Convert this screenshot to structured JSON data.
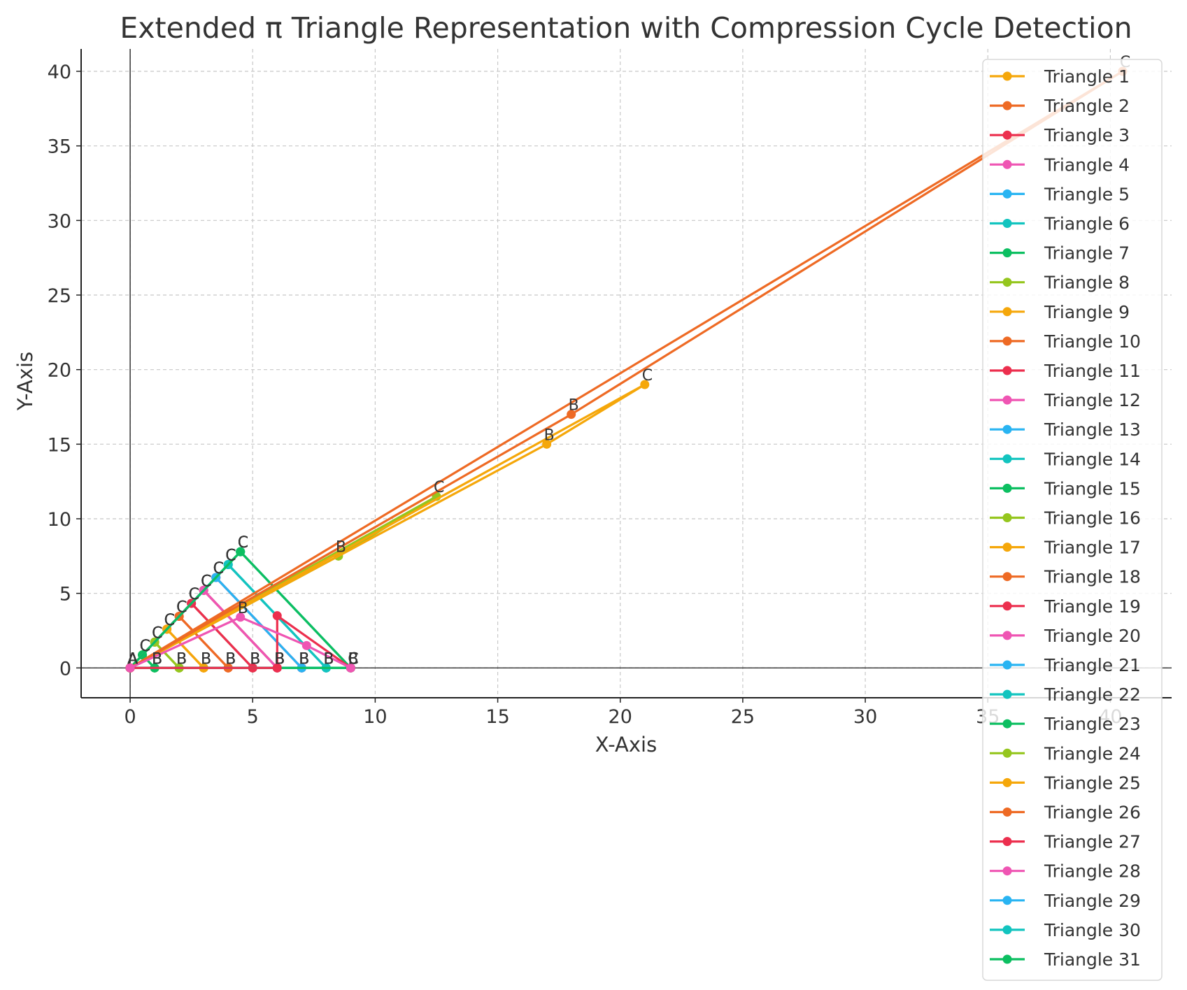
{
  "chart_data": {
    "type": "line",
    "title": "Extended π Triangle Representation with Compression Cycle Detection",
    "xlabel": "X-Axis",
    "ylabel": "Y-Axis",
    "xlim": [
      -2.0,
      42.5
    ],
    "ylim": [
      -2.0,
      41.5
    ],
    "xticks": [
      0,
      5,
      10,
      15,
      20,
      25,
      30,
      35,
      40
    ],
    "yticks": [
      0,
      5,
      10,
      15,
      20,
      25,
      30,
      35,
      40
    ],
    "grid": true,
    "legend_position": "right",
    "vertex_labels": [
      "A",
      "B",
      "C"
    ],
    "palette": [
      "#F5A70A",
      "#EE6A24",
      "#EC2F4E",
      "#EF55B3",
      "#29B4F2",
      "#12C4BF",
      "#0CBF61",
      "#95C61E"
    ],
    "series": [
      {
        "name": "Triangle 1",
        "vertices": [
          [
            0,
            0
          ],
          [
            1,
            0
          ],
          [
            0.5,
            0.87
          ]
        ]
      },
      {
        "name": "Triangle 2",
        "vertices": [
          [
            0,
            0
          ],
          [
            2,
            0
          ],
          [
            1,
            1.73
          ]
        ]
      },
      {
        "name": "Triangle 3",
        "vertices": [
          [
            0,
            0
          ],
          [
            3,
            0
          ],
          [
            1.5,
            2.6
          ]
        ]
      },
      {
        "name": "Triangle 4",
        "vertices": [
          [
            0,
            0
          ],
          [
            4,
            0
          ],
          [
            2,
            3.46
          ]
        ]
      },
      {
        "name": "Triangle 5",
        "vertices": [
          [
            0,
            0
          ],
          [
            5,
            0
          ],
          [
            2.5,
            4.33
          ]
        ]
      },
      {
        "name": "Triangle 6",
        "vertices": [
          [
            0,
            0
          ],
          [
            6,
            0
          ],
          [
            3,
            5.2
          ]
        ]
      },
      {
        "name": "Triangle 7",
        "vertices": [
          [
            0,
            0
          ],
          [
            7,
            0
          ],
          [
            3.5,
            6.06
          ]
        ]
      },
      {
        "name": "Triangle 8",
        "vertices": [
          [
            0,
            0
          ],
          [
            8,
            0
          ],
          [
            4,
            6.93
          ]
        ]
      },
      {
        "name": "Triangle 9",
        "vertices": [
          [
            0,
            0
          ],
          [
            9,
            0
          ],
          [
            4.5,
            7.79
          ]
        ]
      },
      {
        "name": "Triangle 10",
        "vertices": [
          [
            0,
            0
          ],
          [
            5,
            0
          ],
          [
            2.5,
            4.33
          ]
        ]
      },
      {
        "name": "Triangle 11",
        "vertices": [
          [
            0,
            0
          ],
          [
            6,
            0
          ],
          [
            3,
            5.2
          ]
        ]
      },
      {
        "name": "Triangle 12",
        "vertices": [
          [
            0,
            0
          ],
          [
            7,
            0
          ],
          [
            3.5,
            6.06
          ]
        ]
      },
      {
        "name": "Triangle 13",
        "vertices": [
          [
            0,
            0
          ],
          [
            8,
            0
          ],
          [
            4,
            6.93
          ]
        ]
      },
      {
        "name": "Triangle 14",
        "vertices": [
          [
            0,
            0
          ],
          [
            9,
            0
          ],
          [
            4.5,
            7.79
          ]
        ]
      },
      {
        "name": "Triangle 15",
        "vertices": [
          [
            0,
            0
          ],
          [
            1,
            0
          ],
          [
            0.5,
            0.87
          ]
        ]
      },
      {
        "name": "Triangle 16",
        "vertices": [
          [
            0,
            0
          ],
          [
            2,
            0
          ],
          [
            1,
            1.73
          ]
        ]
      },
      {
        "name": "Triangle 17",
        "vertices": [
          [
            0,
            0
          ],
          [
            3,
            0
          ],
          [
            1.5,
            2.6
          ]
        ]
      },
      {
        "name": "Triangle 18",
        "vertices": [
          [
            0,
            0
          ],
          [
            4,
            0
          ],
          [
            2,
            3.46
          ]
        ]
      },
      {
        "name": "Triangle 19",
        "vertices": [
          [
            0,
            0
          ],
          [
            6,
            0
          ],
          [
            3,
            5.2
          ]
        ]
      },
      {
        "name": "Triangle 20",
        "vertices": [
          [
            0,
            0
          ],
          [
            7,
            0
          ],
          [
            3.5,
            6.06
          ]
        ]
      },
      {
        "name": "Triangle 21",
        "vertices": [
          [
            0,
            0
          ],
          [
            8,
            0
          ],
          [
            4,
            6.93
          ]
        ]
      },
      {
        "name": "Triangle 22",
        "vertices": [
          [
            0,
            0
          ],
          [
            9,
            0
          ],
          [
            4.5,
            7.79
          ]
        ]
      },
      {
        "name": "Triangle 23",
        "vertices": [
          [
            0,
            0
          ],
          [
            1,
            0
          ],
          [
            0.5,
            0.87
          ]
        ]
      },
      {
        "name": "Triangle 24",
        "vertices": [
          [
            0,
            0
          ],
          [
            2,
            0
          ],
          [
            1,
            1.73
          ]
        ]
      },
      {
        "name": "Triangle 25",
        "vertices": [
          [
            0,
            0
          ],
          [
            3,
            0
          ],
          [
            1.5,
            2.6
          ]
        ]
      },
      {
        "name": "Triangle 26",
        "vertices": [
          [
            0,
            0
          ],
          [
            4,
            0
          ],
          [
            2,
            3.46
          ]
        ]
      },
      {
        "name": "Triangle 27",
        "vertices": [
          [
            0,
            0
          ],
          [
            5,
            0
          ],
          [
            2.5,
            4.33
          ]
        ]
      },
      {
        "name": "Triangle 28",
        "vertices": [
          [
            0,
            0
          ],
          [
            6,
            0
          ],
          [
            3,
            5.2
          ]
        ]
      },
      {
        "name": "Triangle 29",
        "vertices": [
          [
            0,
            0
          ],
          [
            7,
            0
          ],
          [
            3.5,
            6.06
          ]
        ]
      },
      {
        "name": "Triangle 30",
        "vertices": [
          [
            0,
            0
          ],
          [
            8,
            0
          ],
          [
            4,
            6.93
          ]
        ]
      },
      {
        "name": "Triangle 31",
        "vertices": [
          [
            0,
            0
          ],
          [
            9,
            0
          ],
          [
            4.5,
            7.79
          ]
        ]
      },
      {
        "name": "",
        "vertices": [
          [
            0,
            0
          ],
          [
            8.5,
            7.5
          ],
          [
            12.5,
            11.5
          ]
        ]
      },
      {
        "name": "",
        "vertices": [
          [
            0,
            0
          ],
          [
            17,
            15
          ],
          [
            21,
            19
          ]
        ]
      },
      {
        "name": "",
        "vertices": [
          [
            0,
            0
          ],
          [
            18,
            17
          ],
          [
            40.5,
            40
          ]
        ]
      },
      {
        "name": "",
        "vertices": [
          [
            0,
            0
          ],
          [
            6,
            0
          ],
          [
            6,
            3.5
          ],
          [
            9,
            0
          ]
        ]
      },
      {
        "name": "",
        "vertices": [
          [
            0,
            0
          ],
          [
            4.5,
            3.4
          ],
          [
            7.2,
            1.5
          ],
          [
            9,
            0
          ]
        ]
      }
    ]
  }
}
